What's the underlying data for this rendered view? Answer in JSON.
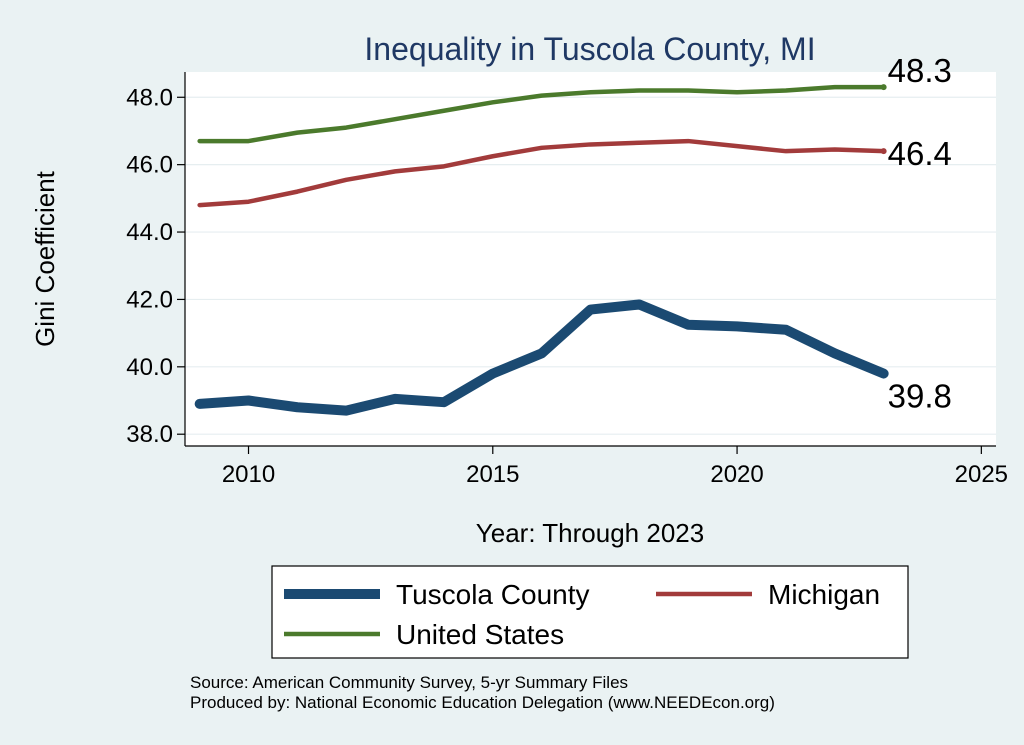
{
  "chart_data": {
    "type": "line",
    "title": "Inequality in Tuscola County, MI",
    "xlabel": "Year: Through 2023",
    "ylabel": "Gini Coefficient",
    "xlim": [
      2008.7,
      2025.3
    ],
    "ylim": [
      37.65,
      48.75
    ],
    "x_ticks": [
      2010,
      2015,
      2020,
      2025
    ],
    "x_tick_labels": [
      "2010",
      "2015",
      "2020",
      "2025"
    ],
    "y_ticks": [
      38,
      40,
      42,
      44,
      46,
      48
    ],
    "y_tick_labels": [
      "38.0",
      "40.0",
      "42.0",
      "44.0",
      "46.0",
      "48.0"
    ],
    "grid": true,
    "legend_position": "bottom",
    "x": [
      2009,
      2010,
      2011,
      2012,
      2013,
      2014,
      2015,
      2016,
      2017,
      2018,
      2019,
      2020,
      2021,
      2022,
      2023
    ],
    "series": [
      {
        "name": "Tuscola County",
        "color": "#1b4a72",
        "weight": "thick",
        "end_label": "39.8",
        "values": [
          38.9,
          39.0,
          38.8,
          38.7,
          39.05,
          38.95,
          39.8,
          40.4,
          41.7,
          41.85,
          41.25,
          41.2,
          41.1,
          40.4,
          39.8
        ]
      },
      {
        "name": "Michigan",
        "color": "#a23b3b",
        "weight": "medium",
        "end_label": "46.4",
        "values": [
          44.8,
          44.9,
          45.2,
          45.55,
          45.8,
          45.95,
          46.25,
          46.5,
          46.6,
          46.65,
          46.7,
          46.55,
          46.4,
          46.45,
          46.4
        ]
      },
      {
        "name": "United States",
        "color": "#4b7a2c",
        "weight": "medium",
        "end_label": "48.3",
        "values": [
          46.7,
          46.7,
          46.95,
          47.1,
          47.35,
          47.6,
          47.85,
          48.05,
          48.15,
          48.2,
          48.2,
          48.15,
          48.2,
          48.3,
          48.3
        ]
      }
    ],
    "notes": [
      "Source: American Community Survey, 5-yr Summary Files",
      "Produced by: National Economic Education Delegation (www.NEEDEcon.org)"
    ]
  }
}
